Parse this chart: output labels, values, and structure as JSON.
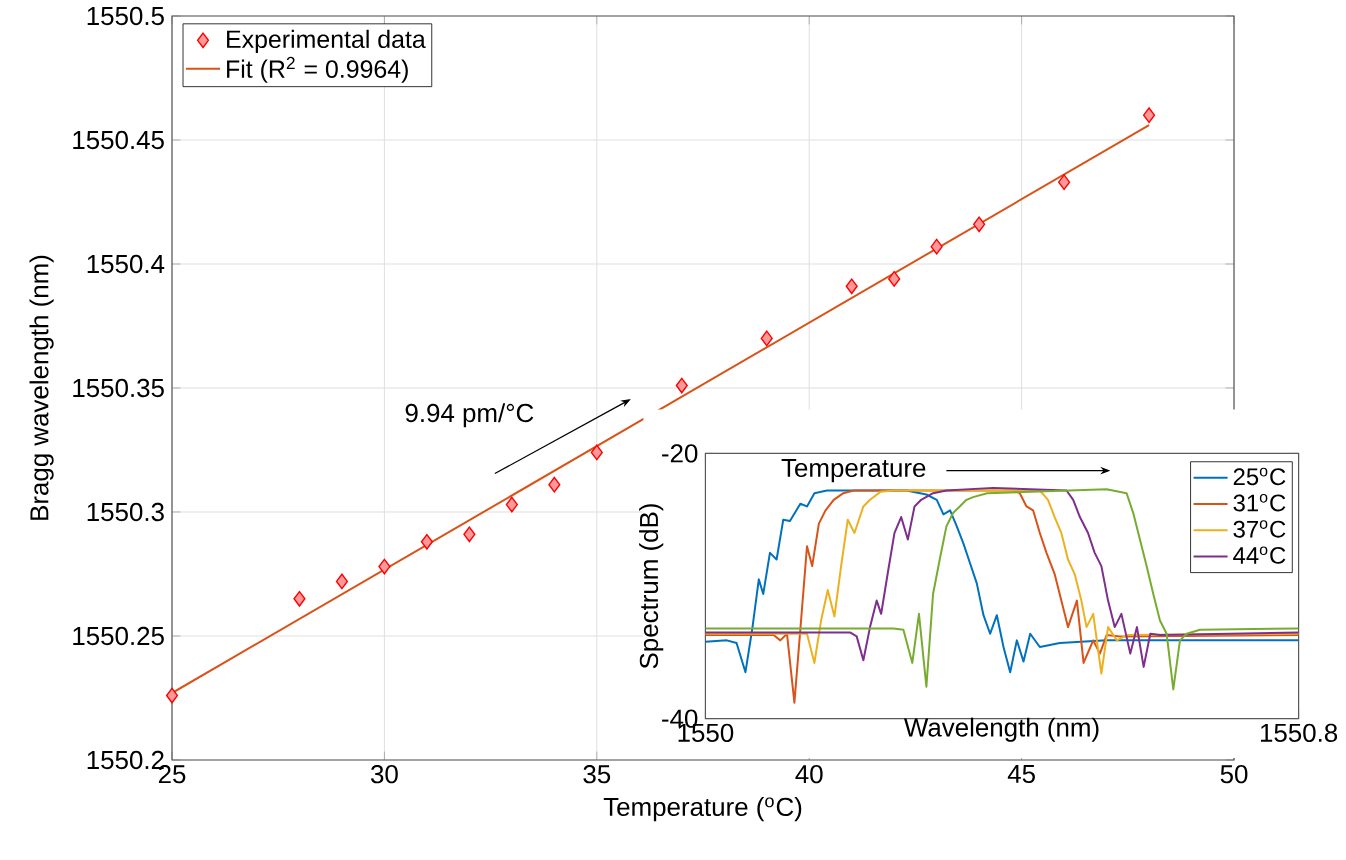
{
  "chart_data": [
    {
      "type": "scatter",
      "xlabel": "Temperature ($^{o}$C)",
      "ylabel": "Bragg wavelength (nm)",
      "annotations": [
        "9.94 pm/°C"
      ],
      "xlim": [
        25,
        50
      ],
      "ylim": [
        1550.2,
        1550.5
      ],
      "xticks": [
        25,
        30,
        35,
        40,
        45,
        50
      ],
      "yticks": [
        1550.2,
        1550.25,
        1550.3,
        1550.35,
        1550.4,
        1550.45,
        1550.5
      ],
      "grid": true,
      "legend": "top left",
      "series": [
        {
          "name": "Experimental data",
          "type": "scatter",
          "marker": "diamond",
          "color": "#ff0000",
          "x": [
            25,
            28,
            29,
            30,
            31,
            32,
            33,
            34,
            35,
            37,
            39,
            41,
            42,
            43,
            44,
            46,
            48
          ],
          "values": [
            1550.226,
            1550.265,
            1550.272,
            1550.278,
            1550.288,
            1550.291,
            1550.303,
            1550.311,
            1550.324,
            1550.351,
            1550.37,
            1550.391,
            1550.394,
            1550.407,
            1550.416,
            1550.433,
            1550.46
          ]
        },
        {
          "name": "Fit (R$^{2}$ = 0.9964)",
          "type": "line",
          "color": "#d95319",
          "x": [
            25,
            48
          ],
          "values": [
            1550.227,
            1550.456
          ]
        }
      ]
    },
    {
      "type": "line",
      "xlabel": "Wavelength (nm)",
      "ylabel": "Spectrum (dB)",
      "annotations": [
        "Temperature"
      ],
      "xlim": [
        1550,
        1550.8
      ],
      "ylim": [
        -40,
        -20
      ],
      "xticks": [
        1550,
        1550.8
      ],
      "yticks": [
        -40,
        -20
      ],
      "legend": "top right",
      "series": [
        {
          "name": "25$^{o}$C",
          "color": "#0072bd",
          "x": [
            1550.0,
            1550.029,
            1550.042,
            1550.054,
            1550.063,
            1550.072,
            1550.078,
            1550.087,
            1550.096,
            1550.105,
            1550.114,
            1550.128,
            1550.137,
            1550.147,
            1550.164,
            1550.271,
            1550.298,
            1550.312,
            1550.321,
            1550.33,
            1550.339,
            1550.348,
            1550.357,
            1550.366,
            1550.375,
            1550.384,
            1550.393,
            1550.402,
            1550.411,
            1550.42,
            1550.429,
            1550.438,
            1550.451,
            1550.478,
            1550.541,
            1550.8
          ],
          "values": [
            -34.2,
            -34.1,
            -34.3,
            -36.5,
            -33.3,
            -29.5,
            -30.6,
            -27.5,
            -28.0,
            -25.0,
            -25.1,
            -23.8,
            -24.0,
            -23.0,
            -22.8,
            -22.8,
            -23.1,
            -23.5,
            -24.6,
            -24.3,
            -25.5,
            -26.8,
            -28.3,
            -29.8,
            -32.2,
            -33.6,
            -32.2,
            -34.6,
            -36.5,
            -34.1,
            -35.7,
            -33.6,
            -34.6,
            -34.3,
            -34.1,
            -34.1
          ]
        },
        {
          "name": "31$^{o}$C",
          "color": "#d95319",
          "x": [
            1550.0,
            1550.092,
            1550.101,
            1550.11,
            1550.12,
            1550.129,
            1550.137,
            1550.144,
            1550.153,
            1550.162,
            1550.173,
            1550.186,
            1550.2,
            1550.415,
            1550.424,
            1550.433,
            1550.442,
            1550.451,
            1550.46,
            1550.471,
            1550.48,
            1550.489,
            1550.501,
            1550.51,
            1550.523,
            1550.532,
            1550.541,
            1550.559,
            1550.8
          ],
          "values": [
            -33.7,
            -33.7,
            -34.1,
            -33.6,
            -38.8,
            -32.6,
            -27.0,
            -28.5,
            -25.3,
            -24.3,
            -23.5,
            -23.0,
            -22.8,
            -22.8,
            -23.0,
            -24.0,
            -24.3,
            -26.0,
            -27.5,
            -29.1,
            -31.1,
            -33.1,
            -31.1,
            -35.8,
            -34.1,
            -35.1,
            -33.7,
            -33.8,
            -33.7
          ]
        },
        {
          "name": "37$^{o}$C",
          "color": "#edb120",
          "x": [
            1550.0,
            1550.137,
            1550.147,
            1550.156,
            1550.165,
            1550.174,
            1550.183,
            1550.192,
            1550.201,
            1550.213,
            1550.222,
            1550.236,
            1550.254,
            1550.451,
            1550.462,
            1550.471,
            1550.48,
            1550.489,
            1550.498,
            1550.507,
            1550.514,
            1550.523,
            1550.534,
            1550.543,
            1550.555,
            1550.568,
            1550.8
          ],
          "values": [
            -33.6,
            -33.6,
            -35.8,
            -32.6,
            -30.3,
            -32.3,
            -28.5,
            -25.0,
            -26.0,
            -24.0,
            -23.5,
            -22.9,
            -22.8,
            -22.8,
            -23.5,
            -24.8,
            -26.0,
            -28.0,
            -29.1,
            -31.1,
            -33.1,
            -32.1,
            -36.6,
            -33.1,
            -34.1,
            -33.7,
            -33.6
          ]
        },
        {
          "name": "44$^{o}$C",
          "color": "#7e2f8e",
          "x": [
            1550.0,
            1550.195,
            1550.204,
            1550.213,
            1550.222,
            1550.231,
            1550.237,
            1550.246,
            1550.255,
            1550.264,
            1550.273,
            1550.282,
            1550.291,
            1550.307,
            1550.325,
            1550.388,
            1550.487,
            1550.496,
            1550.505,
            1550.516,
            1550.525,
            1550.534,
            1550.543,
            1550.552,
            1550.561,
            1550.573,
            1550.582,
            1550.591,
            1550.6,
            1550.613,
            1550.8
          ],
          "values": [
            -33.5,
            -33.5,
            -33.8,
            -35.6,
            -33.1,
            -31.1,
            -32.1,
            -29.0,
            -26.0,
            -24.8,
            -26.5,
            -24.0,
            -23.5,
            -23.0,
            -22.8,
            -22.6,
            -22.8,
            -23.5,
            -24.8,
            -26.0,
            -27.5,
            -28.5,
            -31.1,
            -33.1,
            -32.1,
            -35.1,
            -33.1,
            -36.1,
            -33.6,
            -33.7,
            -33.5
          ]
        },
        {
          "color": "#77ac30",
          "x": [
            1550.0,
            1550.254,
            1550.267,
            1550.279,
            1550.288,
            1550.298,
            1550.307,
            1550.316,
            1550.325,
            1550.334,
            1550.343,
            1550.352,
            1550.361,
            1550.38,
            1550.541,
            1550.568,
            1550.577,
            1550.586,
            1550.595,
            1550.604,
            1550.613,
            1550.622,
            1550.631,
            1550.64,
            1550.649,
            1550.667,
            1550.8
          ],
          "values": [
            -33.2,
            -33.2,
            -33.3,
            -35.8,
            -32.1,
            -37.6,
            -30.6,
            -28.0,
            -25.5,
            -24.5,
            -24.0,
            -23.5,
            -23.3,
            -23.0,
            -22.7,
            -23.0,
            -24.5,
            -26.5,
            -28.5,
            -30.6,
            -32.6,
            -33.6,
            -37.8,
            -34.1,
            -33.6,
            -33.3,
            -33.2
          ]
        }
      ]
    }
  ]
}
